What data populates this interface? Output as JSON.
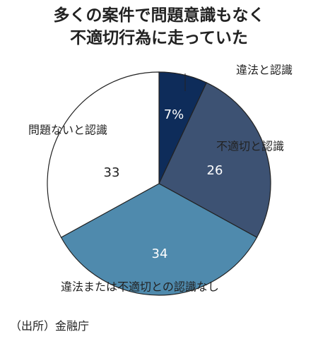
{
  "title": [
    "多くの案件で問題意識もなく",
    "不適切行為に走っていた"
  ],
  "source": "（出所）金融庁",
  "chart_data": {
    "type": "pie",
    "title": "多くの案件で問題意識もなく不適切行為に走っていた",
    "slices": [
      {
        "label": "違法と認識",
        "value": 7,
        "value_label": "7%",
        "color": "#0e2c5a",
        "text_color": "#ffffff"
      },
      {
        "label": "不適切と認識",
        "value": 26,
        "value_label": "26",
        "color": "#3d5273",
        "text_color": "#ffffff"
      },
      {
        "label": "違法または不適切との認識なし",
        "value": 34,
        "value_label": "34",
        "color": "#4f8aad",
        "text_color": "#ffffff"
      },
      {
        "label": "問題ないと認識",
        "value": 33,
        "value_label": "33",
        "color": "#ffffff",
        "text_color": "#222222"
      }
    ],
    "start": "12 o'clock",
    "direction": "clockwise",
    "legend": "none"
  }
}
